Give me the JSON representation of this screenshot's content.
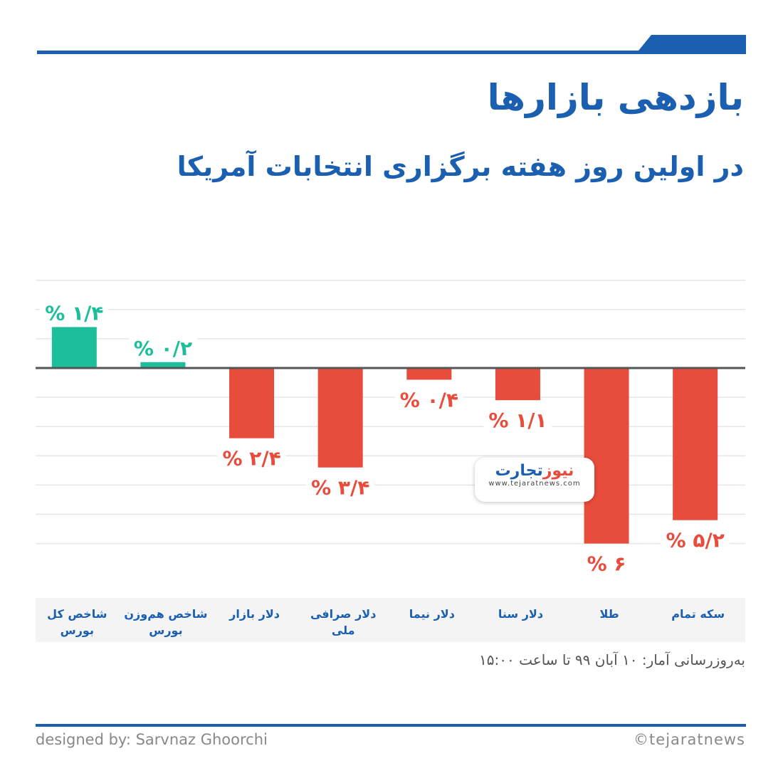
{
  "header": {
    "title": "بازدهی بازارها",
    "subtitle": "در اولین روز هفته برگزاری انتخابات آمریکا"
  },
  "colors": {
    "positive": "#1dbf9a",
    "negative": "#e74c3c",
    "brand": "#1b5fb0",
    "axis": "#555555",
    "grid": "#e6e6e6",
    "category_band": "#f4f4f4"
  },
  "chart_data": {
    "type": "bar",
    "categories": [
      "شاخص کل بورس",
      "شاخص هم‌وزن بورس",
      "دلار بازار",
      "دلار صرافی ملی",
      "دلار نیما",
      "دلار سنا",
      "طلا",
      "سکه تمام"
    ],
    "values": [
      1.4,
      0.2,
      -2.4,
      -3.4,
      -0.4,
      -1.1,
      -6,
      -5.2
    ],
    "data_labels": [
      "۱/۴ %",
      "۰/۲ %",
      "۲/۴ %",
      "۳/۴ %",
      "۰/۴ %",
      "۱/۱ %",
      "۶ %",
      "۵/۲ %"
    ],
    "unit": "%",
    "ylim": [
      -6,
      3
    ],
    "grid": true,
    "legend": "none"
  },
  "footer": {
    "note": "به‌روزرسانی آمار: ۱۰ آبان ۹۹ تا ساعت ۱۵:۰۰",
    "designer": "designed by: Sarvnaz Ghoorchi",
    "copyright": "©tejaratnews"
  },
  "logo": {
    "name_part1": "تجارت",
    "name_part2": "نیوز",
    "url": "www.tejaratnews.com"
  }
}
